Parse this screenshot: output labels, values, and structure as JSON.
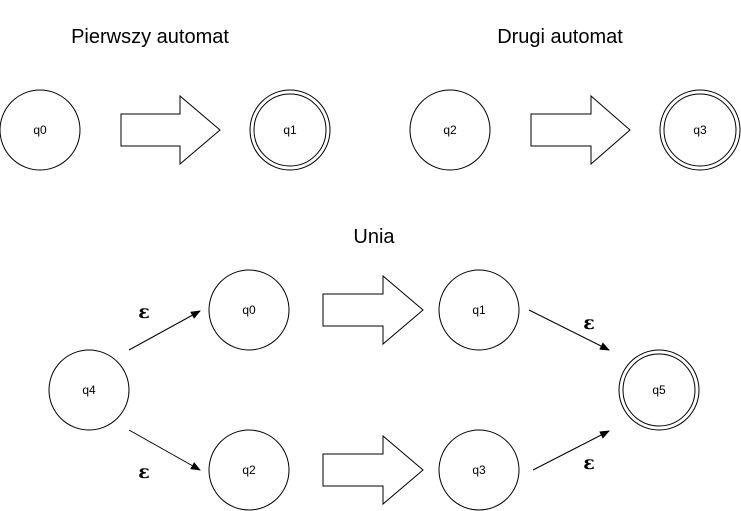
{
  "titles": {
    "first": "Pierwszy automat",
    "second": "Drugi automat",
    "union": "Unia"
  },
  "states": {
    "top_q0": "q0",
    "top_q1": "q1",
    "top_q2": "q2",
    "top_q3": "q3",
    "union_q4": "q4",
    "union_q0": "q0",
    "union_q1": "q1",
    "union_q2": "q2",
    "union_q3": "q3",
    "union_q5": "q5"
  },
  "epsilon": "ε",
  "accepting_states": [
    "top_q1",
    "top_q3",
    "union_q5"
  ]
}
